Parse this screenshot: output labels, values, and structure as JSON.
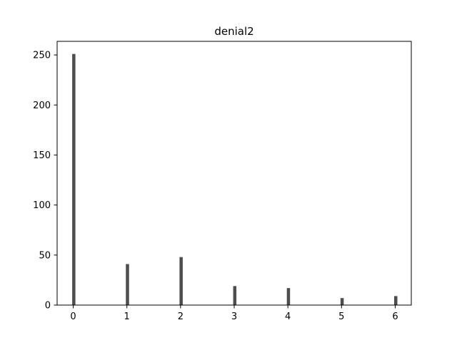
{
  "chart_data": {
    "type": "bar",
    "title": "denial2",
    "xlabel": "",
    "ylabel": "",
    "x": [
      0,
      1,
      2,
      3,
      4,
      5,
      6
    ],
    "values": [
      251,
      41,
      48,
      19,
      17,
      7,
      9
    ],
    "xlim": [
      -0.3,
      6.3
    ],
    "ylim": [
      0,
      263.6
    ],
    "xticks": [
      0,
      1,
      2,
      3,
      4,
      5,
      6
    ],
    "yticks": [
      0,
      50,
      100,
      150,
      200,
      250
    ],
    "bar_color": "#4d4d4d",
    "grid": false,
    "legend": "none"
  }
}
